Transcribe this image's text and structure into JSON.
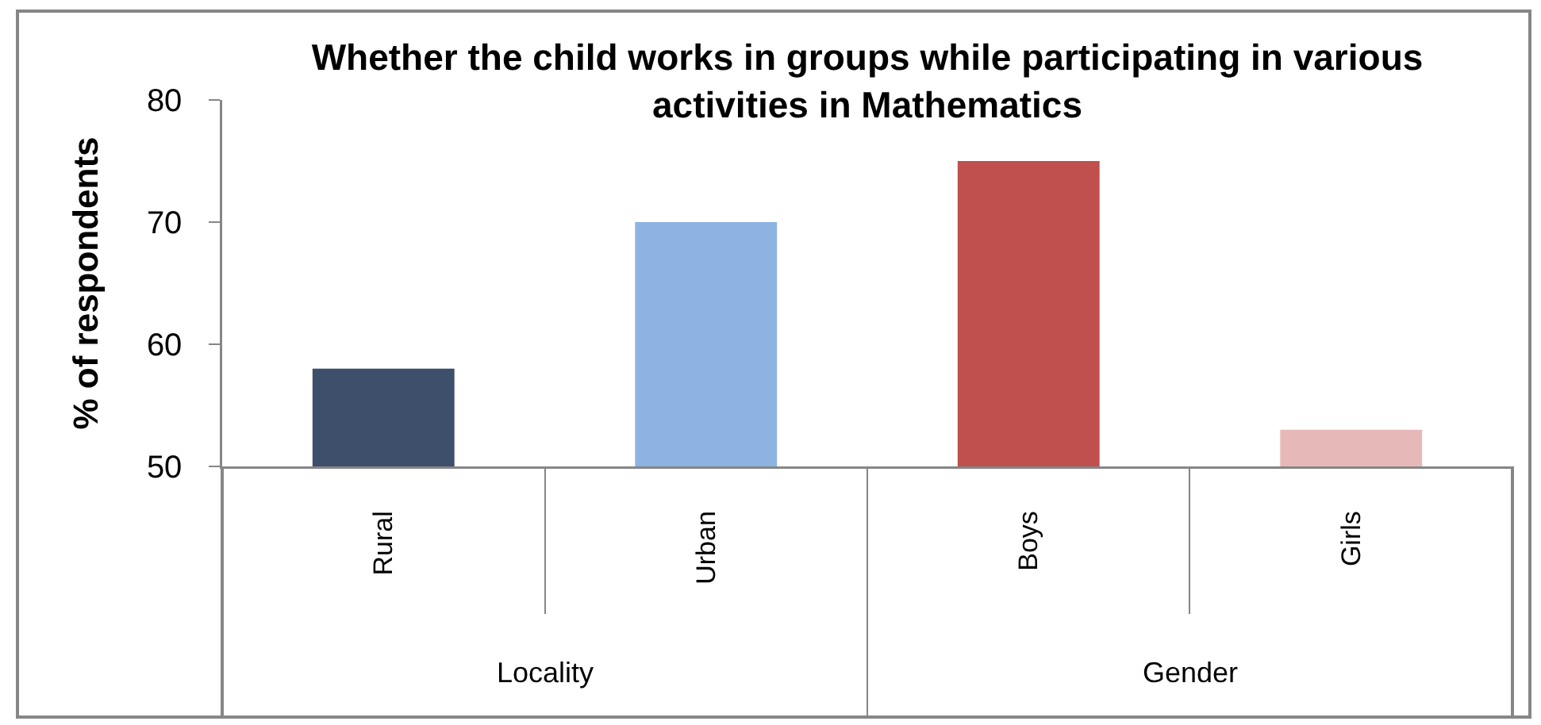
{
  "chart_data": {
    "type": "bar",
    "title": "Whether the child works in groups while participating in various activities in Mathematics",
    "ylabel": "% of respondents",
    "categories": [
      "Rural",
      "Urban",
      "Boys",
      "Girls"
    ],
    "values": [
      58,
      70,
      75,
      53
    ],
    "colors": [
      "#3d4f6b",
      "#8db3e2",
      "#c0504d",
      "#e6b9b8"
    ],
    "ylim": [
      50,
      80
    ],
    "yticks": [
      50,
      60,
      70,
      80
    ],
    "annotations": [
      "Locality",
      "Gender"
    ]
  }
}
